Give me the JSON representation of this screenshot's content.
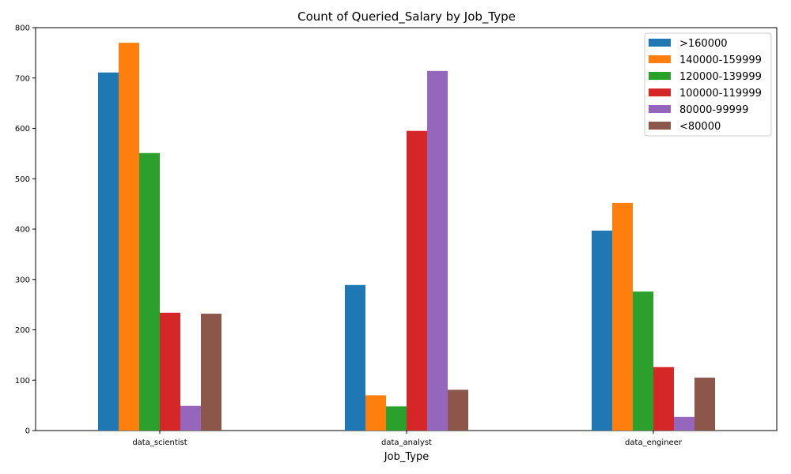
{
  "chart_data": {
    "type": "bar",
    "title": "Count of Queried_Salary by Job_Type",
    "xlabel": "Job_Type",
    "ylabel": "",
    "ylim": [
      0,
      800
    ],
    "yticks": [
      0,
      100,
      200,
      300,
      400,
      500,
      600,
      700,
      800
    ],
    "grid": false,
    "legend_position": "top-right",
    "categories": [
      "data_scientist",
      "data_analyst",
      "data_engineer"
    ],
    "series": [
      {
        "name": ">160000",
        "color": "#1f77b4",
        "values": [
          711,
          289,
          397
        ]
      },
      {
        "name": "140000-159999",
        "color": "#ff7f0e",
        "values": [
          770,
          70,
          452
        ]
      },
      {
        "name": "120000-139999",
        "color": "#2ca02c",
        "values": [
          551,
          48,
          276
        ]
      },
      {
        "name": "100000-119999",
        "color": "#d62728",
        "values": [
          234,
          595,
          126
        ]
      },
      {
        "name": "80000-99999",
        "color": "#9467bd",
        "values": [
          49,
          714,
          27
        ]
      },
      {
        "name": "<80000",
        "color": "#8c564b",
        "values": [
          232,
          81,
          105
        ]
      }
    ]
  }
}
